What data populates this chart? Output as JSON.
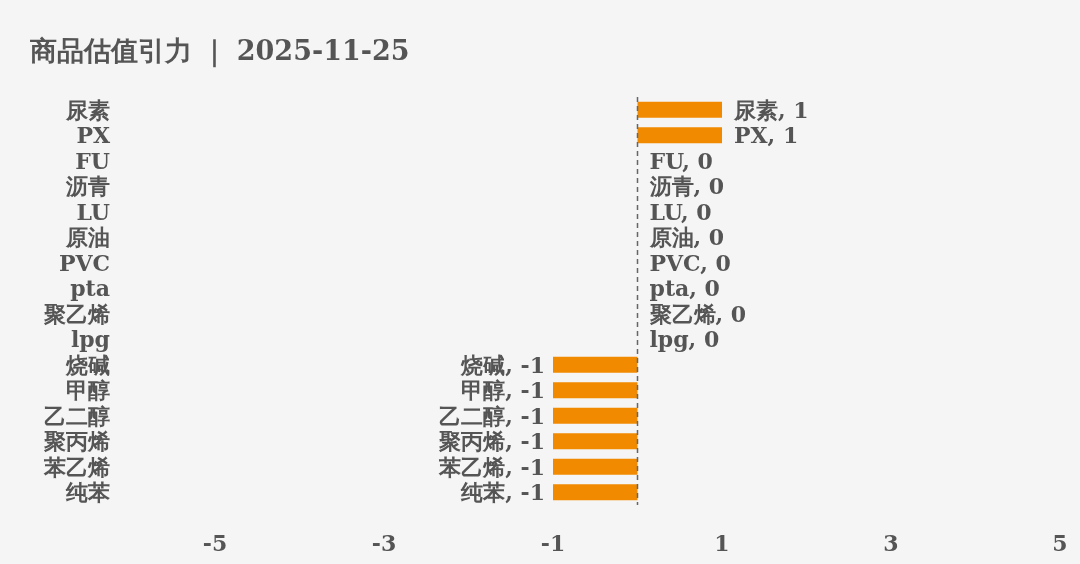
{
  "chart_data": {
    "type": "bar",
    "orientation": "horizontal",
    "title": "商品估值引力 ｜ 2025-11-25",
    "categories": [
      "尿素",
      "PX",
      "FU",
      "沥青",
      "LU",
      "原油",
      "PVC",
      "pta",
      "聚乙烯",
      "lpg",
      "烧碱",
      "甲醇",
      "乙二醇",
      "聚丙烯",
      "苯乙烯",
      "纯苯"
    ],
    "values": [
      1,
      1,
      0,
      0,
      0,
      0,
      0,
      0,
      0,
      0,
      -1,
      -1,
      -1,
      -1,
      -1,
      -1
    ],
    "color": "#f28a00",
    "value_labels": [
      "尿素, 1",
      "PX, 1",
      "FU, 0",
      "沥青, 0",
      "LU, 0",
      "原油, 0",
      "PVC, 0",
      "pta, 0",
      "聚乙烯, 0",
      "lpg, 0",
      "烧碱, -1",
      "甲醇, -1",
      "乙二醇, -1",
      "聚丙烯, -1",
      "苯乙烯, -1",
      "纯苯, -1"
    ],
    "xlim": [
      -5,
      5
    ],
    "xticks": [
      -5,
      -3,
      -1,
      1,
      3,
      5
    ],
    "ref_lines": [
      {
        "axis": "x",
        "value": 0,
        "color": "#666666",
        "line_style": "dashed"
      }
    ]
  }
}
